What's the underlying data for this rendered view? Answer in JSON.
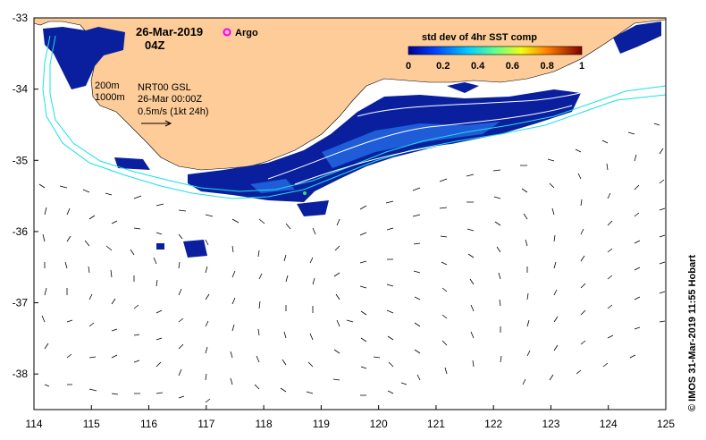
{
  "map": {
    "date_label": "26-Mar-2019",
    "time_label": "04Z",
    "argo_label": "Argo",
    "contour_labels": [
      "200m",
      "1000m"
    ],
    "source_lines": [
      "NRT00 GSL",
      "26-Mar 00:00Z",
      "0.5m/s (1kt 24h)"
    ],
    "credit": "© IMOS 31-Mar-2019 11:55 Hobart",
    "lon_ticks": [
      "114",
      "115",
      "116",
      "117",
      "118",
      "119",
      "120",
      "121",
      "122",
      "123",
      "124",
      "125"
    ],
    "lat_ticks": [
      "-33",
      "-34",
      "-35",
      "-36",
      "-37",
      "-38"
    ],
    "lon_range": [
      114,
      125
    ],
    "lat_range": [
      -38.5,
      -33
    ]
  },
  "colorbar": {
    "title": "std dev of 4hr SST comp",
    "ticks": [
      "0",
      "0.2",
      "0.4",
      "0.6",
      "0.8",
      "1"
    ]
  },
  "colors": {
    "land": "#fdcc99",
    "sst_low": "#0a1f9e",
    "contour": "#19e0e6",
    "argo": "#ff00ff"
  }
}
